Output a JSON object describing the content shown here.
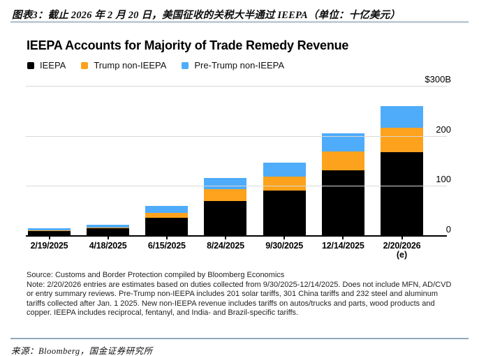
{
  "page": {
    "caption": "图表3：截止 2026 年 2 月 20 日，美国征收的关税大半通过 IEEPA（单位：十亿美元）",
    "footer_source": "来源：Bloomberg，国金证券研究所"
  },
  "chart": {
    "title": "IEEPA Accounts for Majority of Trade Remedy Revenue",
    "source_line": "Source: Customs and Border Protection compiled by Bloomberg Economics",
    "note_line": "Note: 2/20/2026 entries are estimates based on duties collected from 9/30/2025-12/14/2025. Does not include MFN, AD/CVD or entry summary reviews. Pre-Trump non-IEEPA includes 201 solar tariffs, 301 China tariffs and 232 steel and aluminum tariffs collected after Jan. 1 2025. New non-IEEPA revenue includes tariffs on autos/trucks and parts, wood products and copper. IEEPA includes reciprocal, fentanyl, and India- and Brazil-specific tariffs."
  },
  "colors": {
    "ieepa": "#000000",
    "trump_non_ieepa": "#FDA21C",
    "pre_trump_non_ieepa": "#4FACFA",
    "gridline": "#d8d8d8",
    "top_divider": "#c4ced6",
    "bottom_divider": "#8fa8b8"
  },
  "chart_data": {
    "type": "bar",
    "stacked": true,
    "title": "IEEPA Accounts for Majority of Trade Remedy Revenue",
    "unit": "billions of USD",
    "categories": [
      "2/19/2025",
      "4/18/2025",
      "6/15/2025",
      "8/24/2025",
      "9/30/2025",
      "12/14/2025",
      "2/20/2026"
    ],
    "category_sublabels": [
      "",
      "",
      "",
      "",
      "",
      "",
      "(e)"
    ],
    "series": [
      {
        "name": "IEEPA",
        "color": "#000000",
        "values": [
          10,
          15,
          36,
          70,
          91,
          131,
          167
        ]
      },
      {
        "name": "Trump non-IEEPA",
        "color": "#FDA21C",
        "values": [
          1,
          2,
          10,
          24,
          28,
          38,
          50
        ]
      },
      {
        "name": "Pre-Trump non-IEEPA",
        "color": "#4FACFA",
        "values": [
          5,
          6,
          14,
          22,
          27,
          36,
          42
        ]
      }
    ],
    "totals": [
      16,
      23,
      60,
      116,
      146,
      205,
      259
    ],
    "ylim": [
      0,
      300
    ],
    "yticks": [
      {
        "value": 300,
        "label": "$300B"
      },
      {
        "value": 200,
        "label": "200"
      },
      {
        "value": 100,
        "label": "100"
      },
      {
        "value": 0,
        "label": "0"
      }
    ],
    "grid": true,
    "legend_position": "top"
  }
}
